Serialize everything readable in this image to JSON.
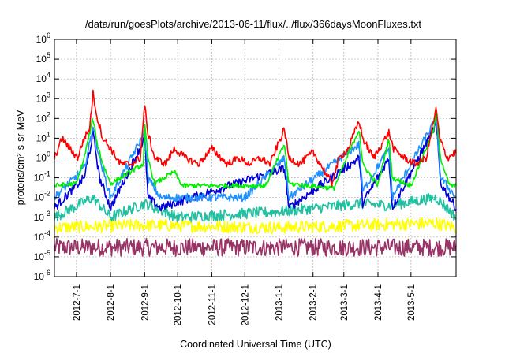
{
  "chart_data": {
    "type": "line",
    "title": "/data/run/goesPlots/archive/2013-06-11/flux/../flux/366daysMoonFluxes.txt",
    "xlabel": "Coordinated Universal Time (UTC)",
    "ylabel": "protons/cm²-s-sr-MeV",
    "yscale": "log",
    "ylim": [
      1e-06,
      1000000.0
    ],
    "xlim": [
      "2012-06-11",
      "2013-06-11"
    ],
    "grid": true,
    "legend": "none",
    "y_ticks": [
      {
        "value": 1e-06,
        "base": "10",
        "exp": "-6"
      },
      {
        "value": 1e-05,
        "base": "10",
        "exp": "-5"
      },
      {
        "value": 0.0001,
        "base": "10",
        "exp": "-4"
      },
      {
        "value": 0.001,
        "base": "10",
        "exp": "-3"
      },
      {
        "value": 0.01,
        "base": "10",
        "exp": "-2"
      },
      {
        "value": 0.1,
        "base": "10",
        "exp": "-1"
      },
      {
        "value": 1,
        "base": "10",
        "exp": "0"
      },
      {
        "value": 10,
        "base": "10",
        "exp": "1"
      },
      {
        "value": 100,
        "base": "10",
        "exp": "2"
      },
      {
        "value": 1000,
        "base": "10",
        "exp": "3"
      },
      {
        "value": 10000,
        "base": "10",
        "exp": "4"
      },
      {
        "value": 100000,
        "base": "10",
        "exp": "5"
      },
      {
        "value": 1000000,
        "base": "10",
        "exp": "6"
      }
    ],
    "x_ticks": [
      "2012-7-1",
      "2012-8-1",
      "2012-9-1",
      "2012-10-1",
      "2012-11-1",
      "2012-12-1",
      "2013-1-1",
      "2013-2-1",
      "2013-3-1",
      "2013-4-1",
      "2013-5-1"
    ],
    "series": [
      {
        "color": "#ff0000",
        "baseline": 1.0,
        "values": [
          [
            "2012-06-11",
            1.0
          ],
          [
            "2012-06-18",
            10
          ],
          [
            "2012-06-25",
            3
          ],
          [
            "2012-07-02",
            1
          ],
          [
            "2012-07-08",
            10
          ],
          [
            "2012-07-13",
            30
          ],
          [
            "2012-07-16",
            2000
          ],
          [
            "2012-07-20",
            100
          ],
          [
            "2012-07-25",
            10
          ],
          [
            "2012-08-01",
            3
          ],
          [
            "2012-08-10",
            0.5
          ],
          [
            "2012-08-20",
            0.5
          ],
          [
            "2012-08-28",
            1
          ],
          [
            "2012-08-31",
            100
          ],
          [
            "2012-09-01",
            700
          ],
          [
            "2012-09-03",
            30
          ],
          [
            "2012-09-10",
            1
          ],
          [
            "2012-09-20",
            0.5
          ],
          [
            "2012-09-28",
            3
          ],
          [
            "2012-10-08",
            1
          ],
          [
            "2012-10-20",
            0.5
          ],
          [
            "2012-11-01",
            3
          ],
          [
            "2012-11-15",
            0.5
          ],
          [
            "2012-11-25",
            1
          ],
          [
            "2012-12-05",
            0.5
          ],
          [
            "2012-12-15",
            1
          ],
          [
            "2012-12-24",
            0.5
          ],
          [
            "2013-01-06",
            30
          ],
          [
            "2013-01-10",
            1
          ],
          [
            "2013-01-20",
            0.5
          ],
          [
            "2013-02-01",
            2
          ],
          [
            "2013-02-10",
            0.3
          ],
          [
            "2013-02-18",
            0.05
          ],
          [
            "2013-02-25",
            1
          ],
          [
            "2013-03-05",
            3
          ],
          [
            "2013-03-15",
            80
          ],
          [
            "2013-03-18",
            10
          ],
          [
            "2013-03-28",
            1
          ],
          [
            "2013-04-11",
            20
          ],
          [
            "2013-04-15",
            3
          ],
          [
            "2013-04-25",
            1
          ],
          [
            "2013-05-05",
            0.5
          ],
          [
            "2013-05-15",
            1
          ],
          [
            "2013-05-22",
            100
          ],
          [
            "2013-05-24",
            300
          ],
          [
            "2013-05-27",
            10
          ],
          [
            "2013-06-03",
            1
          ],
          [
            "2013-06-11",
            2
          ]
        ]
      },
      {
        "color": "#00ee00",
        "baseline": 0.04,
        "values": [
          [
            "2012-06-11",
            0.04
          ],
          [
            "2012-07-01",
            0.05
          ],
          [
            "2012-07-08",
            1
          ],
          [
            "2012-07-12",
            10
          ],
          [
            "2012-07-16",
            100
          ],
          [
            "2012-07-20",
            5
          ],
          [
            "2012-07-25",
            0.5
          ],
          [
            "2012-08-01",
            0.05
          ],
          [
            "2012-08-31",
            0.5
          ],
          [
            "2012-09-01",
            50
          ],
          [
            "2012-09-04",
            1
          ],
          [
            "2012-09-10",
            0.05
          ],
          [
            "2012-09-28",
            0.2
          ],
          [
            "2012-10-05",
            0.04
          ],
          [
            "2012-11-20",
            0.04
          ],
          [
            "2012-12-20",
            0.04
          ],
          [
            "2013-01-06",
            5
          ],
          [
            "2013-01-10",
            0.05
          ],
          [
            "2013-02-20",
            0.03
          ],
          [
            "2013-03-15",
            30
          ],
          [
            "2013-03-18",
            0.5
          ],
          [
            "2013-04-01",
            0.04
          ],
          [
            "2013-04-11",
            10
          ],
          [
            "2013-04-14",
            0.1
          ],
          [
            "2013-05-01",
            0.04
          ],
          [
            "2013-05-22",
            30
          ],
          [
            "2013-05-24",
            200
          ],
          [
            "2013-05-28",
            1
          ],
          [
            "2013-06-05",
            0.04
          ],
          [
            "2013-06-11",
            0.04
          ]
        ]
      },
      {
        "color": "#1e90ff",
        "baseline": 0.01,
        "values": [
          [
            "2012-06-11",
            0.01
          ],
          [
            "2012-07-08",
            0.3
          ],
          [
            "2012-07-13",
            5
          ],
          [
            "2012-07-16",
            50
          ],
          [
            "2012-07-22",
            1
          ],
          [
            "2012-08-01",
            0.01
          ],
          [
            "2012-09-01",
            20
          ],
          [
            "2012-09-04",
            0.1
          ],
          [
            "2012-09-15",
            0.01
          ],
          [
            "2012-12-01",
            0.01
          ],
          [
            "2013-01-06",
            1
          ],
          [
            "2013-01-10",
            0.01
          ],
          [
            "2013-03-15",
            5
          ],
          [
            "2013-03-18",
            0.02
          ],
          [
            "2013-04-11",
            3
          ],
          [
            "2013-04-14",
            0.01
          ],
          [
            "2013-05-24",
            100
          ],
          [
            "2013-05-28",
            0.1
          ],
          [
            "2013-06-11",
            0.01
          ]
        ]
      },
      {
        "color": "#0000dd",
        "baseline": 0.003,
        "values": [
          [
            "2012-06-11",
            0.003
          ],
          [
            "2012-07-08",
            0.1
          ],
          [
            "2012-07-13",
            2
          ],
          [
            "2012-07-16",
            20
          ],
          [
            "2012-07-22",
            0.1
          ],
          [
            "2012-08-01",
            0.003
          ],
          [
            "2012-09-01",
            10
          ],
          [
            "2012-09-04",
            0.01
          ],
          [
            "2012-09-15",
            0.003
          ],
          [
            "2013-01-06",
            0.3
          ],
          [
            "2013-01-10",
            0.003
          ],
          [
            "2013-03-15",
            1
          ],
          [
            "2013-03-18",
            0.005
          ],
          [
            "2013-04-11",
            1
          ],
          [
            "2013-04-14",
            0.003
          ],
          [
            "2013-05-24",
            50
          ],
          [
            "2013-05-28",
            0.05
          ],
          [
            "2013-06-11",
            0.003
          ]
        ]
      },
      {
        "color": "#20c0a0",
        "baseline": 0.001,
        "values": [
          [
            "2012-06-11",
            0.001
          ],
          [
            "2012-07-16",
            0.01
          ],
          [
            "2012-08-01",
            0.001
          ],
          [
            "2012-09-01",
            0.005
          ],
          [
            "2012-10-01",
            0.001
          ],
          [
            "2013-01-06",
            0.002
          ],
          [
            "2013-03-15",
            0.005
          ],
          [
            "2013-04-11",
            0.004
          ],
          [
            "2013-05-24",
            0.01
          ],
          [
            "2013-06-11",
            0.001
          ]
        ]
      },
      {
        "color": "#ffff00",
        "baseline": 0.0003,
        "values": [
          [
            "2012-06-11",
            0.0003
          ],
          [
            "2012-09-01",
            0.0004
          ],
          [
            "2013-01-01",
            0.0003
          ],
          [
            "2013-05-24",
            0.0005
          ],
          [
            "2013-06-11",
            0.0003
          ]
        ]
      },
      {
        "color": "#993366",
        "baseline": 3e-05,
        "values": [
          [
            "2012-06-11",
            3e-05
          ],
          [
            "2013-01-01",
            3e-05
          ],
          [
            "2013-06-11",
            3e-05
          ]
        ]
      }
    ]
  }
}
